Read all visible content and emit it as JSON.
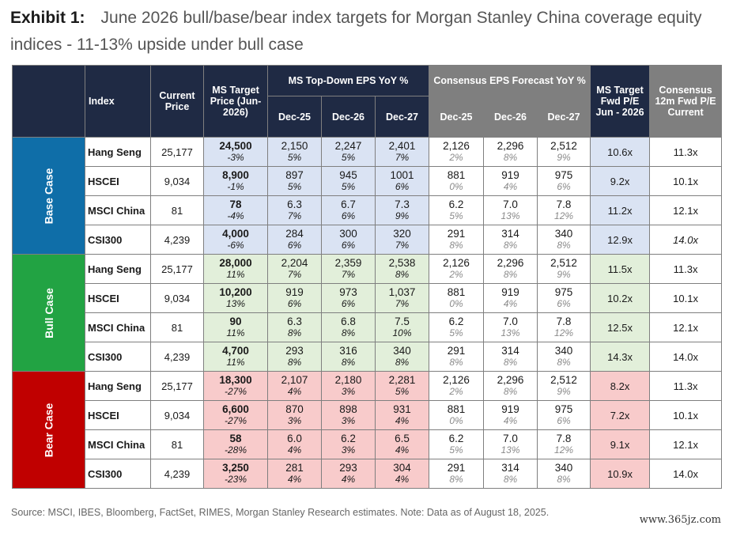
{
  "title": {
    "exhibit": "Exhibit 1:",
    "text": "June 2026 bull/base/bear index targets for Morgan Stanley China coverage equity indices - 11-13% upside under bull case"
  },
  "header": {
    "index": "Index",
    "current_price": "Current Price",
    "ms_target": "MS Target Price (Jun-2026)",
    "ms_topdown": "MS Top-Down EPS YoY %",
    "consensus_eps": "Consensus EPS Forecast YoY %",
    "ms_fwd_pe": "MS Target Fwd P/E Jun - 2026",
    "consensus_pe": "Consensus 12m Fwd P/E Current",
    "years": [
      "Dec-25",
      "Dec-26",
      "Dec-27"
    ]
  },
  "cases": [
    {
      "label": "Base Case",
      "color": "#0f6ea8",
      "rows": [
        {
          "index": "Hang Seng",
          "price": "25,177",
          "target": "24,500",
          "target_pct": "-3%",
          "ms": [
            [
              "2,150",
              "5%"
            ],
            [
              "2,247",
              "5%"
            ],
            [
              "2,401",
              "7%"
            ]
          ],
          "cons": [
            [
              "2,126",
              "2%"
            ],
            [
              "2,296",
              "8%"
            ],
            [
              "2,512",
              "9%"
            ]
          ],
          "ms_pe": "10.6x",
          "cons_pe": "11.3x"
        },
        {
          "index": "HSCEI",
          "price": "9,034",
          "target": "8,900",
          "target_pct": "-1%",
          "ms": [
            [
              "897",
              "5%"
            ],
            [
              "945",
              "5%"
            ],
            [
              "1001",
              "6%"
            ]
          ],
          "cons": [
            [
              "881",
              "0%"
            ],
            [
              "919",
              "4%"
            ],
            [
              "975",
              "6%"
            ]
          ],
          "ms_pe": "9.2x",
          "cons_pe": "10.1x"
        },
        {
          "index": "MSCI China",
          "price": "81",
          "target": "78",
          "target_pct": "-4%",
          "ms": [
            [
              "6.3",
              "7%"
            ],
            [
              "6.7",
              "6%"
            ],
            [
              "7.3",
              "9%"
            ]
          ],
          "cons": [
            [
              "6.2",
              "5%"
            ],
            [
              "7.0",
              "13%"
            ],
            [
              "7.8",
              "12%"
            ]
          ],
          "ms_pe": "11.2x",
          "cons_pe": "12.1x"
        },
        {
          "index": "CSI300",
          "price": "4,239",
          "target": "4,000",
          "target_pct": "-6%",
          "ms": [
            [
              "284",
              "6%"
            ],
            [
              "300",
              "6%"
            ],
            [
              "320",
              "7%"
            ]
          ],
          "cons": [
            [
              "291",
              "8%"
            ],
            [
              "314",
              "8%"
            ],
            [
              "340",
              "8%"
            ]
          ],
          "ms_pe": "12.9x",
          "cons_pe": "14.0x"
        }
      ]
    },
    {
      "label": "Bull Case",
      "color": "#22a343",
      "rows": [
        {
          "index": "Hang Seng",
          "price": "25,177",
          "target": "28,000",
          "target_pct": "11%",
          "ms": [
            [
              "2,204",
              "7%"
            ],
            [
              "2,359",
              "7%"
            ],
            [
              "2,538",
              "8%"
            ]
          ],
          "cons": [
            [
              "2,126",
              "2%"
            ],
            [
              "2,296",
              "8%"
            ],
            [
              "2,512",
              "9%"
            ]
          ],
          "ms_pe": "11.5x",
          "cons_pe": "11.3x"
        },
        {
          "index": "HSCEI",
          "price": "9,034",
          "target": "10,200",
          "target_pct": "13%",
          "ms": [
            [
              "919",
              "6%"
            ],
            [
              "973",
              "6%"
            ],
            [
              "1,037",
              "7%"
            ]
          ],
          "cons": [
            [
              "881",
              "0%"
            ],
            [
              "919",
              "4%"
            ],
            [
              "975",
              "6%"
            ]
          ],
          "ms_pe": "10.2x",
          "cons_pe": "10.1x"
        },
        {
          "index": "MSCI China",
          "price": "81",
          "target": "90",
          "target_pct": "11%",
          "ms": [
            [
              "6.3",
              "8%"
            ],
            [
              "6.8",
              "8%"
            ],
            [
              "7.5",
              "10%"
            ]
          ],
          "cons": [
            [
              "6.2",
              "5%"
            ],
            [
              "7.0",
              "13%"
            ],
            [
              "7.8",
              "12%"
            ]
          ],
          "ms_pe": "12.5x",
          "cons_pe": "12.1x"
        },
        {
          "index": "CSI300",
          "price": "4,239",
          "target": "4,700",
          "target_pct": "11%",
          "ms": [
            [
              "293",
              "8%"
            ],
            [
              "316",
              "8%"
            ],
            [
              "340",
              "8%"
            ]
          ],
          "cons": [
            [
              "291",
              "8%"
            ],
            [
              "314",
              "8%"
            ],
            [
              "340",
              "8%"
            ]
          ],
          "ms_pe": "14.3x",
          "cons_pe": "14.0x"
        }
      ]
    },
    {
      "label": "Bear Case",
      "color": "#c00000",
      "rows": [
        {
          "index": "Hang Seng",
          "price": "25,177",
          "target": "18,300",
          "target_pct": "-27%",
          "ms": [
            [
              "2,107",
              "4%"
            ],
            [
              "2,180",
              "3%"
            ],
            [
              "2,281",
              "5%"
            ]
          ],
          "cons": [
            [
              "2,126",
              "2%"
            ],
            [
              "2,296",
              "8%"
            ],
            [
              "2,512",
              "9%"
            ]
          ],
          "ms_pe": "8.2x",
          "cons_pe": "11.3x"
        },
        {
          "index": "HSCEI",
          "price": "9,034",
          "target": "6,600",
          "target_pct": "-27%",
          "ms": [
            [
              "870",
              "3%"
            ],
            [
              "898",
              "3%"
            ],
            [
              "931",
              "4%"
            ]
          ],
          "cons": [
            [
              "881",
              "0%"
            ],
            [
              "919",
              "4%"
            ],
            [
              "975",
              "6%"
            ]
          ],
          "ms_pe": "7.2x",
          "cons_pe": "10.1x"
        },
        {
          "index": "MSCI China",
          "price": "81",
          "target": "58",
          "target_pct": "-28%",
          "ms": [
            [
              "6.0",
              "4%"
            ],
            [
              "6.2",
              "3%"
            ],
            [
              "6.5",
              "4%"
            ]
          ],
          "cons": [
            [
              "6.2",
              "5%"
            ],
            [
              "7.0",
              "13%"
            ],
            [
              "7.8",
              "12%"
            ]
          ],
          "ms_pe": "9.1x",
          "cons_pe": "12.1x"
        },
        {
          "index": "CSI300",
          "price": "4,239",
          "target": "3,250",
          "target_pct": "-23%",
          "ms": [
            [
              "281",
              "4%"
            ],
            [
              "293",
              "4%"
            ],
            [
              "304",
              "4%"
            ]
          ],
          "cons": [
            [
              "291",
              "8%"
            ],
            [
              "314",
              "8%"
            ],
            [
              "340",
              "8%"
            ]
          ],
          "ms_pe": "10.9x",
          "cons_pe": "14.0x"
        }
      ]
    }
  ],
  "source": "Source: MSCI, IBES, Bloomberg, FactSet, RIMES, Morgan Stanley Research estimates. Note: Data as of August 18, 2025.",
  "watermark": "www.365jz.com"
}
